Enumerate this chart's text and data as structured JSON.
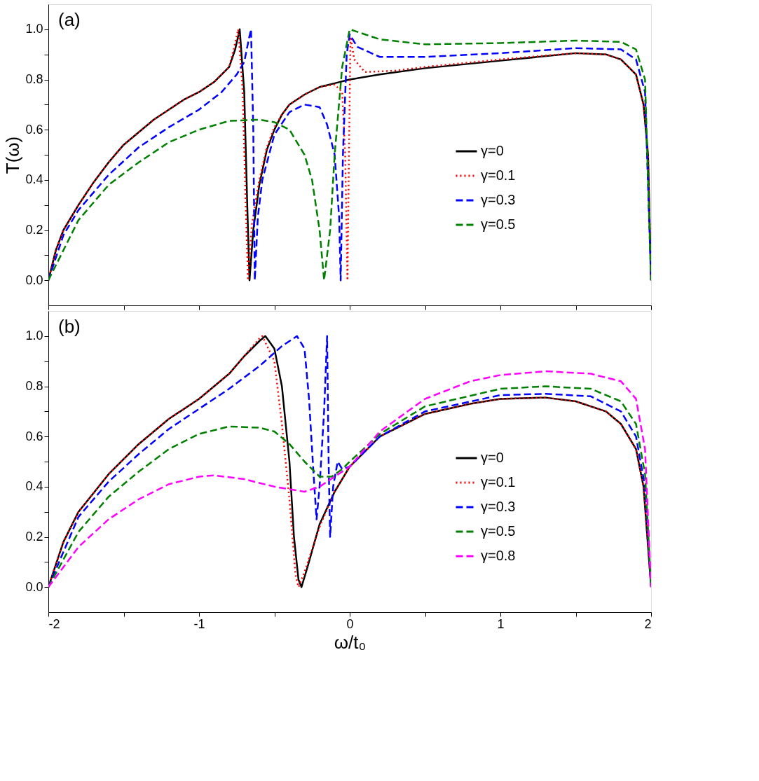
{
  "chart_data": [
    {
      "type": "line",
      "ylabel": "T(ω)",
      "annotations": [
        "(a)"
      ],
      "legend": "right",
      "grid": false,
      "tick_labels": "y",
      "xlim": [
        -2,
        2
      ],
      "ylim": [
        -0.1,
        1.1
      ],
      "xticks": [
        -2,
        {
          "value": -1.5,
          "label": null
        },
        -1,
        {
          "value": -0.5,
          "label": null
        },
        0,
        {
          "value": 0.5,
          "label": null
        },
        1,
        {
          "value": 1.5,
          "label": null
        },
        2
      ],
      "yticks": [
        {
          "value": 0,
          "label": "0.0"
        },
        {
          "value": 0.1,
          "label": null
        },
        {
          "value": 0.2,
          "label": "0.2"
        },
        {
          "value": 0.3,
          "label": null
        },
        {
          "value": 0.4,
          "label": "0.4"
        },
        {
          "value": 0.5,
          "label": null
        },
        {
          "value": 0.6,
          "label": "0.6"
        },
        {
          "value": 0.7,
          "label": null
        },
        {
          "value": 0.8,
          "label": "0.8"
        },
        {
          "value": 0.9,
          "label": null
        },
        {
          "value": 1,
          "label": "1.0"
        }
      ],
      "series": [
        {
          "name": "γ=0",
          "color": "#000000",
          "line_style": "solid",
          "x": [
            -2,
            -1.95,
            -1.9,
            -1.8,
            -1.7,
            -1.6,
            -1.5,
            -1.4,
            -1.3,
            -1.2,
            -1.1,
            -1.0,
            -0.9,
            -0.8,
            -0.76,
            -0.73,
            -0.7,
            -0.68,
            -0.665,
            -0.64,
            -0.6,
            -0.55,
            -0.5,
            -0.45,
            -0.4,
            -0.3,
            -0.2,
            -0.1,
            0,
            0.2,
            0.5,
            1,
            1.5,
            1.7,
            1.8,
            1.9,
            1.95,
            1.98,
            2
          ],
          "values": [
            0,
            0.12,
            0.2,
            0.3,
            0.39,
            0.47,
            0.54,
            0.59,
            0.64,
            0.68,
            0.72,
            0.75,
            0.79,
            0.85,
            0.92,
            1.0,
            0.75,
            0.3,
            0.0,
            0.2,
            0.38,
            0.52,
            0.6,
            0.66,
            0.7,
            0.74,
            0.77,
            0.785,
            0.8,
            0.82,
            0.845,
            0.875,
            0.905,
            0.9,
            0.88,
            0.82,
            0.7,
            0.5,
            0
          ]
        },
        {
          "name": "γ=0.1",
          "color": "#ff0000",
          "line_style": "dotted",
          "x": [
            -2,
            -1.95,
            -1.9,
            -1.8,
            -1.7,
            -1.6,
            -1.5,
            -1.4,
            -1.3,
            -1.2,
            -1.1,
            -1.0,
            -0.9,
            -0.8,
            -0.77,
            -0.74,
            -0.71,
            -0.69,
            -0.675,
            -0.65,
            -0.6,
            -0.55,
            -0.5,
            -0.45,
            -0.4,
            -0.3,
            -0.2,
            -0.1,
            -0.05,
            -0.03,
            -0.015,
            -0.005,
            0.005,
            0.03,
            0.1,
            0.3,
            0.5,
            1,
            1.5,
            1.7,
            1.8,
            1.9,
            1.95,
            1.98,
            2
          ],
          "values": [
            0,
            0.12,
            0.2,
            0.3,
            0.39,
            0.47,
            0.54,
            0.59,
            0.64,
            0.68,
            0.72,
            0.75,
            0.79,
            0.85,
            0.92,
            1.0,
            0.75,
            0.3,
            0.0,
            0.22,
            0.4,
            0.53,
            0.61,
            0.66,
            0.7,
            0.74,
            0.77,
            0.78,
            0.75,
            0.5,
            0.0,
            0.5,
            0.97,
            0.88,
            0.83,
            0.835,
            0.85,
            0.88,
            0.905,
            0.9,
            0.88,
            0.82,
            0.7,
            0.5,
            0
          ]
        },
        {
          "name": "γ=0.3",
          "color": "#0000ff",
          "line_style": "dashed",
          "x": [
            -2,
            -1.9,
            -1.8,
            -1.6,
            -1.4,
            -1.2,
            -1.0,
            -0.85,
            -0.75,
            -0.7,
            -0.67,
            -0.655,
            -0.64,
            -0.63,
            -0.61,
            -0.58,
            -0.5,
            -0.4,
            -0.3,
            -0.2,
            -0.15,
            -0.1,
            -0.07,
            -0.06,
            -0.045,
            -0.02,
            0,
            0.05,
            0.2,
            0.5,
            1,
            1.5,
            1.8,
            1.9,
            1.96,
            2
          ],
          "values": [
            0,
            0.18,
            0.28,
            0.42,
            0.53,
            0.61,
            0.68,
            0.75,
            0.82,
            0.87,
            0.96,
            1.0,
            0.6,
            0.0,
            0.25,
            0.4,
            0.58,
            0.67,
            0.7,
            0.69,
            0.62,
            0.5,
            0.25,
            0.0,
            0.5,
            0.9,
            0.98,
            0.93,
            0.89,
            0.89,
            0.905,
            0.925,
            0.92,
            0.88,
            0.75,
            0
          ]
        },
        {
          "name": "γ=0.5",
          "color": "#008000",
          "line_style": "dashed",
          "x": [
            -2,
            -1.8,
            -1.6,
            -1.4,
            -1.2,
            -1.0,
            -0.8,
            -0.6,
            -0.5,
            -0.4,
            -0.3,
            -0.25,
            -0.2,
            -0.17,
            -0.13,
            -0.1,
            -0.05,
            0,
            0.1,
            0.2,
            0.5,
            1,
            1.5,
            1.8,
            1.9,
            1.96,
            2
          ],
          "values": [
            0,
            0.24,
            0.38,
            0.47,
            0.55,
            0.6,
            0.635,
            0.64,
            0.63,
            0.6,
            0.5,
            0.4,
            0.2,
            0.0,
            0.2,
            0.5,
            0.85,
            1.0,
            0.98,
            0.96,
            0.94,
            0.945,
            0.955,
            0.95,
            0.92,
            0.8,
            0
          ]
        }
      ]
    },
    {
      "type": "line",
      "xlabel": "ω/t₀",
      "annotations": [
        "(b)"
      ],
      "legend": "right",
      "grid": false,
      "xlim": [
        -2,
        2
      ],
      "ylim": [
        -0.1,
        1.1
      ],
      "xticks": [
        -2,
        {
          "value": -1.5,
          "label": null
        },
        -1,
        {
          "value": -0.5,
          "label": null
        },
        0,
        {
          "value": 0.5,
          "label": null
        },
        1,
        {
          "value": 1.5,
          "label": null
        },
        2
      ],
      "yticks": [
        {
          "value": 0,
          "label": "0.0"
        },
        {
          "value": 0.1,
          "label": null
        },
        {
          "value": 0.2,
          "label": "0.2"
        },
        {
          "value": 0.3,
          "label": null
        },
        {
          "value": 0.4,
          "label": "0.4"
        },
        {
          "value": 0.5,
          "label": null
        },
        {
          "value": 0.6,
          "label": "0.6"
        },
        {
          "value": 0.7,
          "label": null
        },
        {
          "value": 0.8,
          "label": "0.8"
        },
        {
          "value": 0.9,
          "label": null
        },
        {
          "value": 1,
          "label": "1.0"
        }
      ],
      "series": [
        {
          "name": "γ=0",
          "color": "#000000",
          "line_style": "solid",
          "x": [
            -2,
            -1.9,
            -1.8,
            -1.6,
            -1.4,
            -1.2,
            -1.0,
            -0.8,
            -0.7,
            -0.6,
            -0.56,
            -0.5,
            -0.45,
            -0.4,
            -0.37,
            -0.34,
            -0.32,
            -0.28,
            -0.2,
            -0.1,
            0,
            0.2,
            0.5,
            0.8,
            1.0,
            1.3,
            1.5,
            1.7,
            1.8,
            1.9,
            1.95,
            2
          ],
          "values": [
            0,
            0.18,
            0.3,
            0.45,
            0.57,
            0.67,
            0.75,
            0.85,
            0.92,
            0.98,
            1.0,
            0.95,
            0.8,
            0.5,
            0.2,
            0.03,
            0.0,
            0.08,
            0.25,
            0.38,
            0.48,
            0.6,
            0.69,
            0.73,
            0.75,
            0.755,
            0.74,
            0.7,
            0.65,
            0.55,
            0.4,
            0
          ]
        },
        {
          "name": "γ=0.1",
          "color": "#ff0000",
          "line_style": "dotted",
          "x": [
            -2,
            -1.9,
            -1.8,
            -1.6,
            -1.4,
            -1.2,
            -1.0,
            -0.8,
            -0.7,
            -0.6,
            -0.58,
            -0.5,
            -0.45,
            -0.4,
            -0.36,
            -0.34,
            -0.3,
            -0.2,
            -0.1,
            0,
            0.2,
            0.5,
            0.8,
            1.0,
            1.3,
            1.5,
            1.7,
            1.8,
            1.9,
            1.95,
            2
          ],
          "values": [
            0,
            0.18,
            0.3,
            0.45,
            0.57,
            0.67,
            0.75,
            0.85,
            0.92,
            0.99,
            1.0,
            0.9,
            0.65,
            0.35,
            0.05,
            0.0,
            0.06,
            0.24,
            0.38,
            0.48,
            0.6,
            0.69,
            0.73,
            0.75,
            0.755,
            0.74,
            0.7,
            0.65,
            0.55,
            0.4,
            0
          ]
        },
        {
          "name": "γ=0.3",
          "color": "#0000ff",
          "line_style": "dashed",
          "x": [
            -2,
            -1.8,
            -1.6,
            -1.4,
            -1.2,
            -1.0,
            -0.8,
            -0.6,
            -0.45,
            -0.35,
            -0.3,
            -0.27,
            -0.24,
            -0.22,
            -0.2,
            -0.17,
            -0.15,
            -0.14,
            -0.13,
            -0.11,
            -0.08,
            -0.05,
            0,
            0.2,
            0.5,
            1.0,
            1.3,
            1.6,
            1.8,
            1.9,
            1.96,
            2
          ],
          "values": [
            0,
            0.28,
            0.42,
            0.53,
            0.63,
            0.71,
            0.79,
            0.88,
            0.96,
            1.0,
            0.95,
            0.75,
            0.45,
            0.27,
            0.4,
            0.7,
            1.0,
            0.5,
            0.2,
            0.4,
            0.5,
            0.47,
            0.48,
            0.6,
            0.7,
            0.765,
            0.77,
            0.76,
            0.7,
            0.6,
            0.4,
            0
          ]
        },
        {
          "name": "γ=0.5",
          "color": "#008000",
          "line_style": "dashed",
          "x": [
            -2,
            -1.8,
            -1.6,
            -1.4,
            -1.2,
            -1.0,
            -0.8,
            -0.6,
            -0.5,
            -0.4,
            -0.3,
            -0.2,
            -0.12,
            -0.05,
            0,
            0.2,
            0.5,
            1.0,
            1.3,
            1.6,
            1.8,
            1.9,
            1.96,
            2
          ],
          "values": [
            0,
            0.22,
            0.36,
            0.46,
            0.55,
            0.61,
            0.64,
            0.635,
            0.62,
            0.57,
            0.5,
            0.44,
            0.44,
            0.47,
            0.5,
            0.61,
            0.72,
            0.79,
            0.8,
            0.79,
            0.74,
            0.65,
            0.45,
            0
          ]
        },
        {
          "name": "γ=0.8",
          "color": "#ff00ff",
          "line_style": "dashed",
          "x": [
            -2,
            -1.8,
            -1.6,
            -1.4,
            -1.2,
            -1.0,
            -0.9,
            -0.7,
            -0.5,
            -0.3,
            -0.2,
            0,
            0.2,
            0.5,
            0.8,
            1.0,
            1.3,
            1.6,
            1.8,
            1.9,
            1.96,
            2
          ],
          "values": [
            0,
            0.16,
            0.27,
            0.35,
            0.41,
            0.44,
            0.445,
            0.43,
            0.4,
            0.38,
            0.4,
            0.48,
            0.62,
            0.75,
            0.82,
            0.845,
            0.86,
            0.85,
            0.82,
            0.75,
            0.55,
            0
          ]
        }
      ]
    }
  ]
}
